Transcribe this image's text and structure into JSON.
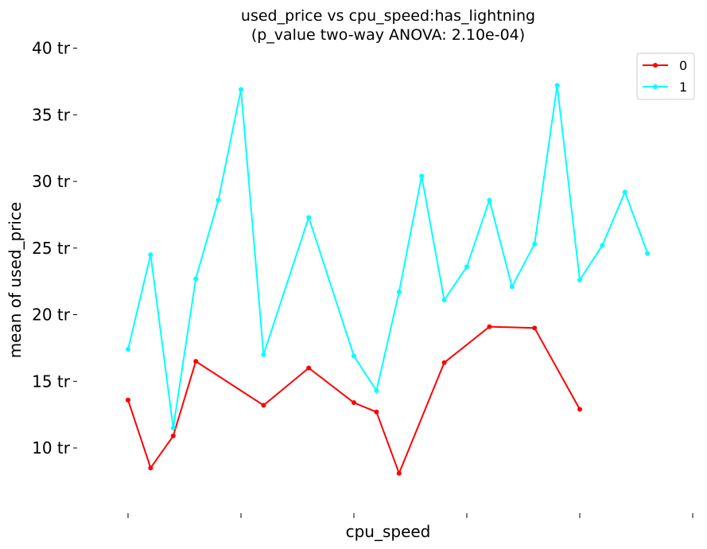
{
  "chart_data": {
    "type": "line",
    "title": "used_price vs cpu_speed:has_lightning",
    "subtitle": "(p_value two-way ANOVA: 2.10e-04)",
    "xlabel": "cpu_speed",
    "ylabel": "mean of used_price",
    "ylim": [
      5,
      40
    ],
    "yticks": [
      10,
      15,
      20,
      25,
      30,
      35,
      40
    ],
    "ytick_labels": [
      "10 tr",
      "15 tr",
      "20 tr",
      "25 tr",
      "30 tr",
      "35 tr",
      "40 tr"
    ],
    "xlim": [
      0,
      25
    ],
    "xticks": [
      0,
      5,
      10,
      15,
      20,
      25
    ],
    "grid": false,
    "legend_position": "top-right",
    "series": [
      {
        "name": "0",
        "color": "#ff0000",
        "points": [
          [
            0,
            13.6
          ],
          [
            1,
            8.5
          ],
          [
            2,
            10.9
          ],
          [
            3,
            16.5
          ],
          [
            6,
            13.2
          ],
          [
            8,
            16.0
          ],
          [
            10,
            13.4
          ],
          [
            11,
            12.7
          ],
          [
            12,
            8.1
          ],
          [
            14,
            16.4
          ],
          [
            16,
            19.1
          ],
          [
            18,
            19.0
          ],
          [
            20,
            12.9
          ]
        ]
      },
      {
        "name": "1",
        "color": "#00ffff",
        "points": [
          [
            0,
            17.4
          ],
          [
            1,
            24.5
          ],
          [
            2,
            11.5
          ],
          [
            3,
            22.7
          ],
          [
            4,
            28.6
          ],
          [
            5,
            36.9
          ],
          [
            6,
            17.0
          ],
          [
            8,
            27.3
          ],
          [
            10,
            16.9
          ],
          [
            11,
            14.3
          ],
          [
            12,
            21.7
          ],
          [
            13,
            30.4
          ],
          [
            14,
            21.1
          ],
          [
            15,
            23.6
          ],
          [
            16,
            28.6
          ],
          [
            17,
            22.1
          ],
          [
            18,
            25.3
          ],
          [
            19,
            37.2
          ],
          [
            20,
            22.6
          ],
          [
            21,
            25.2
          ],
          [
            22,
            29.2
          ],
          [
            23,
            24.6
          ]
        ]
      }
    ]
  }
}
